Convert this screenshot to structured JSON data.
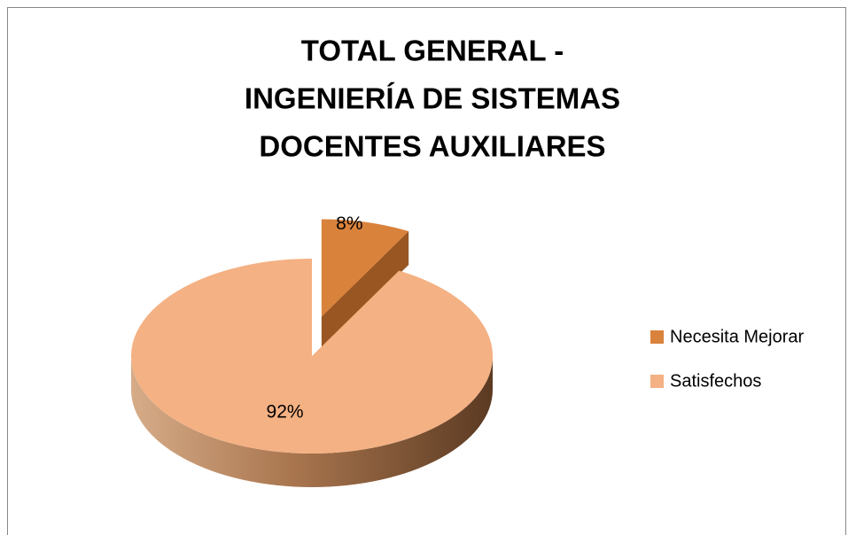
{
  "chart_data": {
    "type": "pie",
    "title": [
      "TOTAL GENERAL -",
      "INGENIERÍA DE SISTEMAS",
      "DOCENTES AUXILIARES"
    ],
    "categories": [
      "Necesita Mejorar",
      "Satisfechos"
    ],
    "values": [
      8,
      92
    ],
    "value_labels": [
      "8%",
      "92%"
    ],
    "colors": [
      "#d9823b",
      "#f4b183"
    ],
    "legend": "right",
    "explode": [
      true,
      false
    ]
  }
}
